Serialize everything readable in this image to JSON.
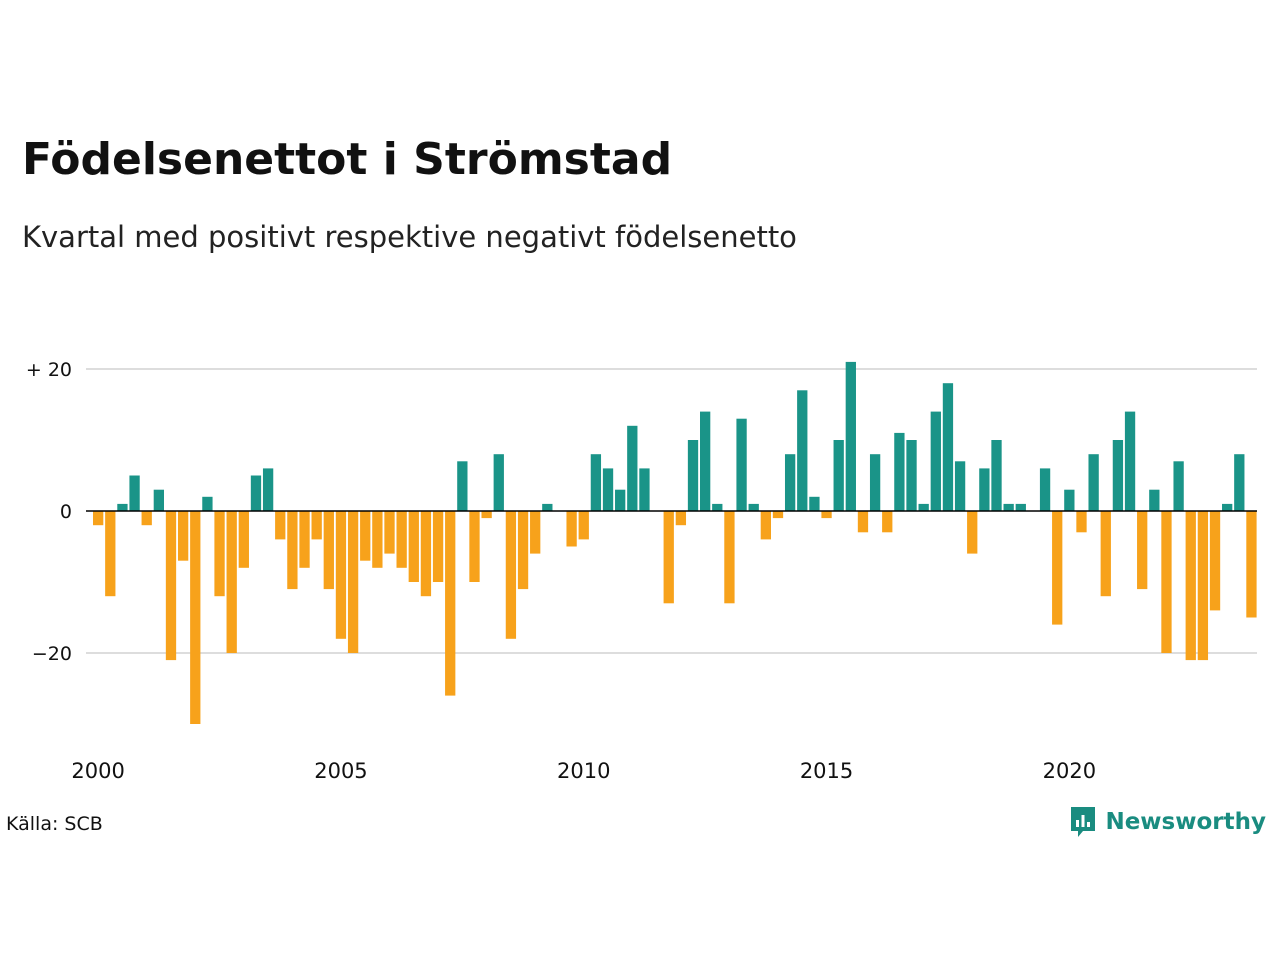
{
  "title": "Födelsenettot i Strömstad",
  "subtitle": "Kvartal med positivt respektive negativt födelsenetto",
  "source": "Källa: SCB",
  "brand": {
    "name": "Newsworthy",
    "icon": "newsworthy-logo-icon",
    "color": "#1a8c80"
  },
  "colors": {
    "positive": "#1a9488",
    "negative": "#f7a21b",
    "grid": "#dddddd",
    "zero_line": "#000000"
  },
  "chart_data": {
    "type": "bar",
    "x_start": "2000 Q1",
    "x_step": "quarter",
    "xtick_labels": [
      "2000",
      "2005",
      "2010",
      "2015",
      "2020"
    ],
    "ytick_labels": [
      "+ 20",
      "0",
      "−20"
    ],
    "yticks": [
      20,
      0,
      -20
    ],
    "ylim": [
      -31,
      22
    ],
    "grid": true,
    "legend": "none",
    "values": [
      -2,
      -12,
      1,
      5,
      -2,
      3,
      -21,
      -7,
      -30,
      2,
      -12,
      -20,
      -8,
      5,
      6,
      -4,
      -11,
      -8,
      -4,
      -11,
      -18,
      -20,
      -7,
      -8,
      -6,
      -8,
      -10,
      -12,
      -10,
      -26,
      7,
      -10,
      -1,
      8,
      -18,
      -11,
      -6,
      1,
      0,
      -5,
      -4,
      8,
      6,
      3,
      12,
      6,
      0,
      -13,
      -2,
      10,
      14,
      1,
      -13,
      13,
      1,
      -4,
      -1,
      8,
      17,
      2,
      -1,
      10,
      21,
      -3,
      8,
      -3,
      11,
      10,
      1,
      14,
      18,
      7,
      -6,
      6,
      10,
      1,
      1,
      0,
      6,
      -16,
      3,
      -3,
      8,
      -12,
      10,
      14,
      -11,
      3,
      -20,
      7,
      -21,
      -21,
      -14,
      1,
      8,
      -15
    ]
  }
}
